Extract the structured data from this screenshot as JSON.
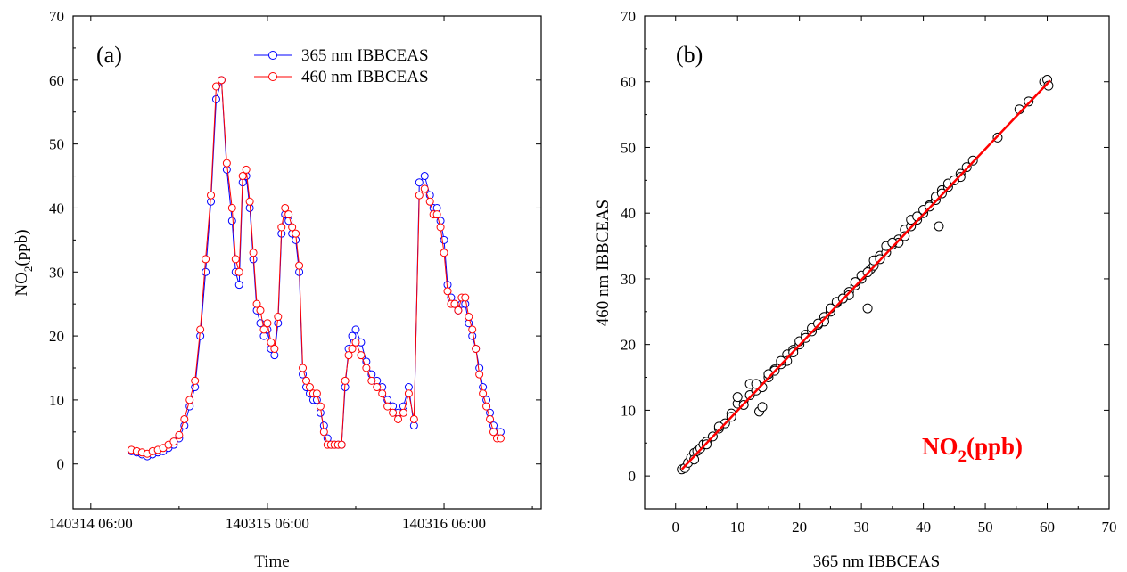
{
  "chart_data": [
    {
      "panel": "(a)",
      "type": "line",
      "xlabel": "Time",
      "ylabel": "NO",
      "ylabel_sub": "2",
      "ylabel_suffix": "(ppb)",
      "ylim": [
        -7,
        70
      ],
      "yticks": [
        0,
        10,
        20,
        30,
        40,
        50,
        60,
        70
      ],
      "xlim": [
        -0.1,
        2.55
      ],
      "xticks": [
        {
          "pos": 0,
          "label": "140314 06:00"
        },
        {
          "pos": 1,
          "label": "140315 06:00"
        },
        {
          "pos": 2,
          "label": "140316 06:00"
        }
      ],
      "legend_position": "top-right",
      "series": [
        {
          "name": "365 nm IBBCEAS",
          "color": "#0000ff",
          "x": [
            0.23,
            0.26,
            0.29,
            0.32,
            0.35,
            0.38,
            0.41,
            0.44,
            0.47,
            0.5,
            0.53,
            0.56,
            0.59,
            0.62,
            0.65,
            0.68,
            0.71,
            0.74,
            0.77,
            0.8,
            0.82,
            0.84,
            0.86,
            0.88,
            0.9,
            0.92,
            0.94,
            0.96,
            0.98,
            1.0,
            1.02,
            1.04,
            1.06,
            1.08,
            1.1,
            1.12,
            1.14,
            1.16,
            1.18,
            1.2,
            1.22,
            1.24,
            1.26,
            1.28,
            1.3,
            1.32,
            1.34,
            1.36,
            1.38,
            1.4,
            1.42,
            1.44,
            1.46,
            1.48,
            1.5,
            1.53,
            1.56,
            1.59,
            1.62,
            1.65,
            1.68,
            1.71,
            1.74,
            1.77,
            1.8,
            1.83,
            1.86,
            1.89,
            1.92,
            1.94,
            1.96,
            1.98,
            2.0,
            2.02,
            2.04,
            2.06,
            2.08,
            2.1,
            2.12,
            2.14,
            2.16,
            2.18,
            2.2,
            2.22,
            2.24,
            2.26,
            2.28,
            2.3,
            2.32
          ],
          "values": [
            2,
            1.8,
            1.5,
            1.2,
            1.5,
            1.8,
            2,
            2.5,
            3,
            4,
            6,
            9,
            12,
            20,
            30,
            41,
            57,
            60,
            46,
            38,
            30,
            28,
            44,
            45,
            40,
            32,
            24,
            22,
            20,
            21,
            18,
            17,
            22,
            36,
            39,
            38,
            36,
            35,
            30,
            14,
            12,
            11,
            10,
            10,
            8,
            6,
            4,
            3,
            3,
            3,
            3,
            12,
            18,
            20,
            21,
            19,
            16,
            14,
            13,
            12,
            10,
            9,
            8,
            9,
            12,
            6,
            44,
            45,
            42,
            40,
            40,
            38,
            35,
            28,
            26,
            25,
            24,
            25,
            25,
            22,
            20,
            18,
            15,
            12,
            10,
            8,
            6,
            5,
            5
          ]
        },
        {
          "name": "460 nm IBBCEAS",
          "color": "#ff0000",
          "x": [
            0.23,
            0.26,
            0.29,
            0.32,
            0.35,
            0.38,
            0.41,
            0.44,
            0.47,
            0.5,
            0.53,
            0.56,
            0.59,
            0.62,
            0.65,
            0.68,
            0.71,
            0.74,
            0.77,
            0.8,
            0.82,
            0.84,
            0.86,
            0.88,
            0.9,
            0.92,
            0.94,
            0.96,
            0.98,
            1.0,
            1.02,
            1.04,
            1.06,
            1.08,
            1.1,
            1.12,
            1.14,
            1.16,
            1.18,
            1.2,
            1.22,
            1.24,
            1.26,
            1.28,
            1.3,
            1.32,
            1.34,
            1.36,
            1.38,
            1.4,
            1.42,
            1.44,
            1.46,
            1.48,
            1.5,
            1.53,
            1.56,
            1.59,
            1.62,
            1.65,
            1.68,
            1.71,
            1.74,
            1.77,
            1.8,
            1.83,
            1.86,
            1.89,
            1.92,
            1.94,
            1.96,
            1.98,
            2.0,
            2.02,
            2.04,
            2.06,
            2.08,
            2.1,
            2.12,
            2.14,
            2.16,
            2.18,
            2.2,
            2.22,
            2.24,
            2.26,
            2.28,
            2.3,
            2.32
          ],
          "values": [
            2.2,
            2,
            1.8,
            1.6,
            2,
            2.2,
            2.5,
            3,
            3.5,
            4.5,
            7,
            10,
            13,
            21,
            32,
            42,
            59,
            60,
            47,
            40,
            32,
            30,
            45,
            46,
            41,
            33,
            25,
            24,
            21,
            22,
            19,
            18,
            23,
            37,
            40,
            39,
            37,
            36,
            31,
            15,
            13,
            12,
            11,
            11,
            9,
            5,
            3,
            3,
            3,
            3,
            3,
            13,
            17,
            18,
            19,
            17,
            15,
            13,
            12,
            11,
            9,
            8,
            7,
            8,
            11,
            7,
            42,
            43,
            41,
            39,
            39,
            37,
            33,
            27,
            25,
            25,
            24,
            26,
            26,
            23,
            21,
            18,
            14,
            11,
            9,
            7,
            5,
            4,
            4
          ]
        }
      ]
    },
    {
      "panel": "(b)",
      "type": "scatter",
      "xlabel": "365 nm IBBCEAS",
      "ylabel": "460 nm IBBCEAS",
      "xlim": [
        -5,
        70
      ],
      "ylim": [
        -5,
        70
      ],
      "xticks": [
        0,
        10,
        20,
        30,
        40,
        50,
        60,
        70
      ],
      "yticks": [
        0,
        10,
        20,
        30,
        40,
        50,
        60,
        70
      ],
      "annotation": {
        "text": "NO",
        "sub": "2",
        "suffix": "(ppb)",
        "color": "#ff0000"
      },
      "fit_line": {
        "x": [
          1,
          60.5
        ],
        "y": [
          1,
          60.2
        ],
        "color": "#ff0000"
      },
      "points": {
        "x": [
          1,
          1.5,
          2,
          2.5,
          3,
          3.5,
          4,
          4.5,
          5,
          6,
          7,
          8,
          9,
          10,
          11,
          12,
          13,
          13.5,
          14,
          15,
          16,
          17,
          18,
          19,
          20,
          21,
          22,
          23,
          24,
          25,
          26,
          27,
          28,
          29,
          30,
          31,
          31.5,
          32,
          33,
          34,
          35,
          36,
          37,
          38,
          39,
          40,
          41,
          42,
          42.5,
          43,
          44,
          45,
          46,
          47,
          48,
          52,
          55.5,
          57,
          59.5,
          60,
          60.2,
          10,
          12,
          14,
          16,
          18,
          20,
          22,
          24,
          26,
          28,
          30,
          32,
          34,
          36,
          38,
          40,
          42,
          44,
          46,
          3,
          5,
          7,
          9,
          11,
          13,
          15,
          17,
          19,
          21,
          23,
          25,
          27,
          29,
          31,
          33,
          35,
          37,
          39,
          41,
          43,
          45
        ],
        "y": [
          1,
          1.2,
          2,
          2.8,
          3.5,
          3.8,
          4.2,
          4.8,
          5.2,
          6,
          7.2,
          8,
          9.5,
          11,
          11.5,
          12.3,
          13,
          9.8,
          10.5,
          15,
          16.2,
          17,
          18.5,
          19.2,
          20,
          21.5,
          22,
          23,
          24.2,
          25,
          26.3,
          27,
          28,
          29,
          30,
          25.5,
          31.5,
          32,
          33.5,
          34,
          35.2,
          36,
          37.5,
          38,
          39,
          40,
          41.2,
          42,
          38,
          43.5,
          44,
          45,
          46,
          47,
          48,
          51.5,
          55.8,
          57,
          60,
          60.3,
          59.4,
          12,
          14,
          13.5,
          16,
          17.5,
          20.5,
          22.5,
          23.5,
          26.5,
          27.5,
          30.5,
          32.8,
          35,
          35.5,
          39,
          40.5,
          42.5,
          44.5,
          45.5,
          2.5,
          4.8,
          7.5,
          9,
          10.8,
          14,
          15.5,
          17.5,
          18.8,
          21,
          23.2,
          25.5,
          27,
          29.5,
          31,
          33,
          35.5,
          36.5,
          39.5,
          41,
          43,
          45
        ]
      }
    }
  ]
}
